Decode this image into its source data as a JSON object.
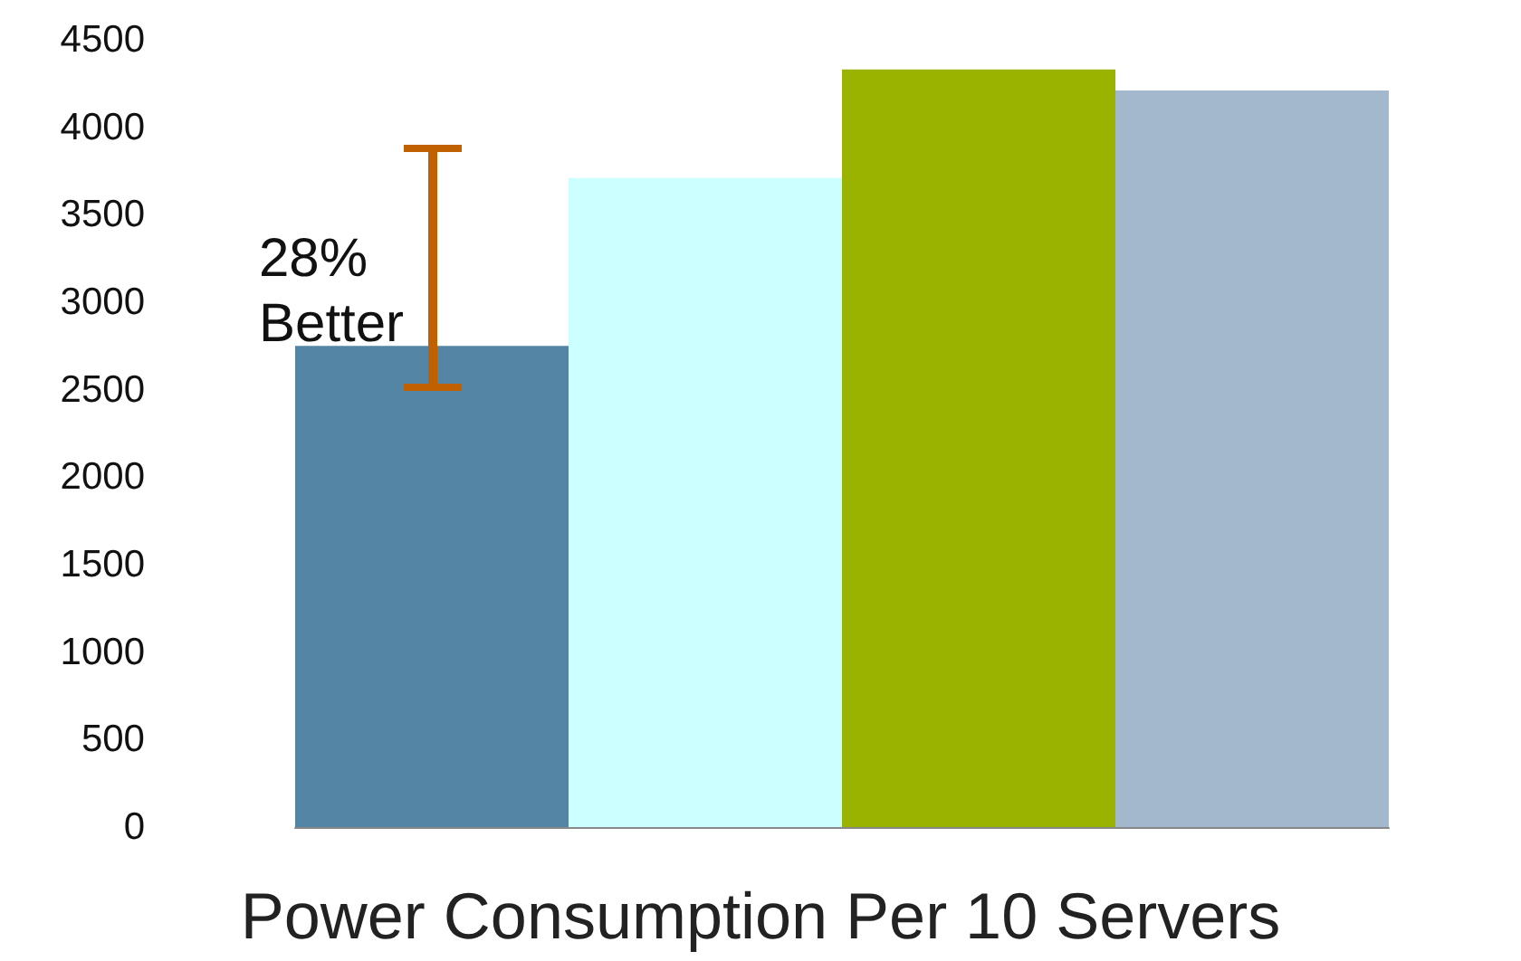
{
  "chart_data": {
    "type": "bar",
    "title": "Power Consumption Per 10 Servers",
    "categories": [
      null,
      null,
      null,
      null
    ],
    "values": [
      2750,
      3710,
      4330,
      4210
    ],
    "colors": [
      "#5585a5",
      "#ccffff",
      "#99b300",
      "#a3b8cc"
    ],
    "ylim": [
      0,
      4500
    ],
    "yticks": [
      0,
      500,
      1000,
      1500,
      2000,
      2500,
      3000,
      3500,
      4000,
      4500
    ],
    "grid": false,
    "annotations": [
      "28% Better"
    ]
  }
}
